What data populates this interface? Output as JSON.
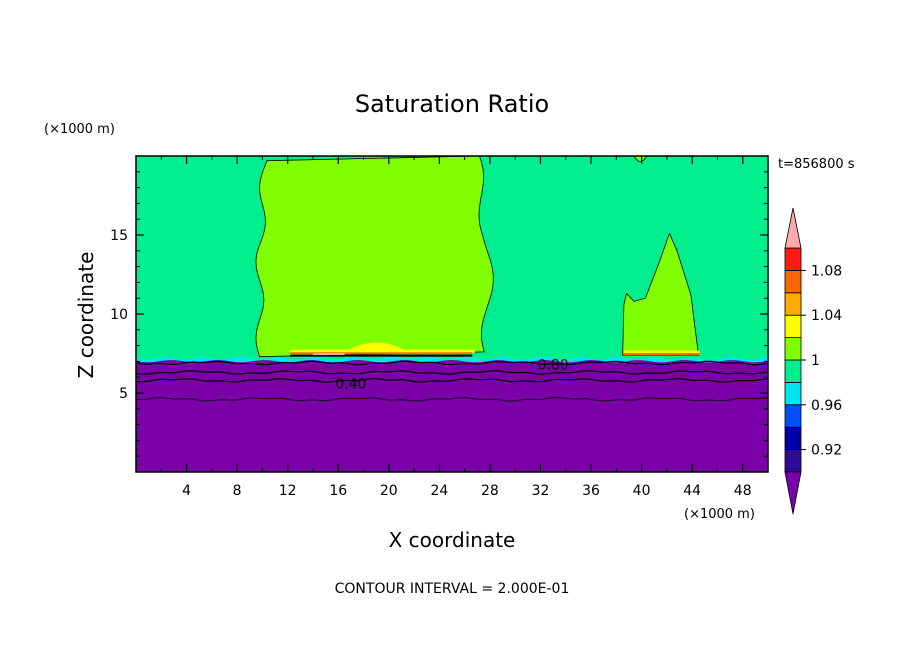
{
  "chart_data": {
    "type": "heatmap",
    "title": "Saturation Ratio",
    "xlabel": "X coordinate",
    "ylabel": "Z coordinate",
    "x_unit": "(×1000 m)",
    "y_unit": "(×1000 m)",
    "time_label": "t=856800 s",
    "footer": "CONTOUR INTERVAL = 2.000E-01",
    "xlim": [
      0,
      50
    ],
    "ylim": [
      0,
      20
    ],
    "x_ticks": [
      4,
      8,
      12,
      16,
      20,
      24,
      28,
      32,
      36,
      40,
      44,
      48
    ],
    "y_ticks": [
      5,
      10,
      15
    ],
    "contour_labels": [
      {
        "text": "0.40",
        "x": 17.0,
        "z": 5.6
      },
      {
        "text": "0.80",
        "x": 33.0,
        "z": 6.8
      }
    ],
    "colorbar": {
      "levels": [
        0.9,
        0.92,
        0.94,
        0.96,
        0.98,
        1.0,
        1.02,
        1.04,
        1.06,
        1.08,
        1.1
      ],
      "colors": [
        "#2e0a9a",
        "#0000a8",
        "#0050ff",
        "#00e4f0",
        "#00ee8e",
        "#80ff00",
        "#ffff00",
        "#ffaa00",
        "#ff6600",
        "#ff1a1a"
      ],
      "under_color": "#7a00a8",
      "over_color": "#ffaaaa",
      "tick_labels": [
        "0.92",
        "0.96",
        "1",
        "1.04",
        "1.08"
      ],
      "tick_values": [
        0.92,
        0.96,
        1.0,
        1.04,
        1.08
      ]
    },
    "regions": {
      "background_color": "#00ee8e",
      "dry_color": "#7a00a8",
      "plume_color": "#80ff00",
      "boundary_layer_top_z": 7.2,
      "plumes": [
        {
          "x_left": 9.8,
          "x_right": 27.8,
          "z_bottom": 7.3,
          "z_top": 20.0
        },
        {
          "x_left": 38.5,
          "x_right": 44.5,
          "z_bottom": 7.4,
          "z_top": 15.1
        }
      ]
    }
  }
}
